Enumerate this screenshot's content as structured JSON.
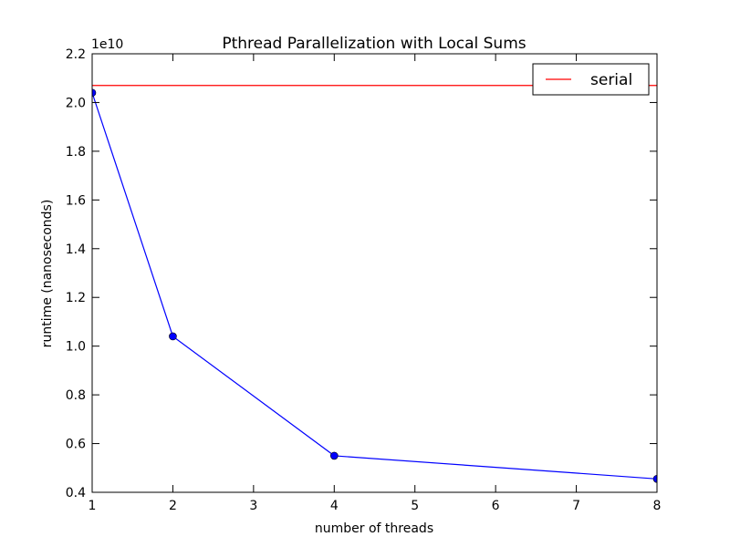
{
  "chart_data": {
    "type": "line",
    "title": "Pthread Parallelization with Local Sums",
    "xlabel": "number of threads",
    "ylabel": "runtime (nanoseconds)",
    "y_offset_label": "1e10",
    "y_scale_factor": 10000000000,
    "xlim": [
      1,
      8
    ],
    "ylim": [
      0.4,
      2.2
    ],
    "x_ticks": [
      1,
      2,
      3,
      4,
      5,
      6,
      7,
      8
    ],
    "x_tick_labels": [
      "1",
      "2",
      "3",
      "4",
      "5",
      "6",
      "7",
      "8"
    ],
    "y_ticks": [
      0.4,
      0.6,
      0.8,
      1.0,
      1.2,
      1.4,
      1.6,
      1.8,
      2.0,
      2.2
    ],
    "y_tick_labels": [
      "0.4",
      "0.6",
      "0.8",
      "1.0",
      "1.2",
      "1.4",
      "1.6",
      "1.8",
      "2.0",
      "2.2"
    ],
    "grid": false,
    "legend_position": "top-right",
    "series": [
      {
        "type": "line-markers",
        "color": "#0000ff",
        "x": [
          1,
          2,
          4,
          8
        ],
        "y": [
          2.04,
          1.04,
          0.55,
          0.455
        ]
      },
      {
        "type": "hline",
        "name": "serial",
        "color": "#ff0000",
        "y": 2.07
      }
    ]
  }
}
